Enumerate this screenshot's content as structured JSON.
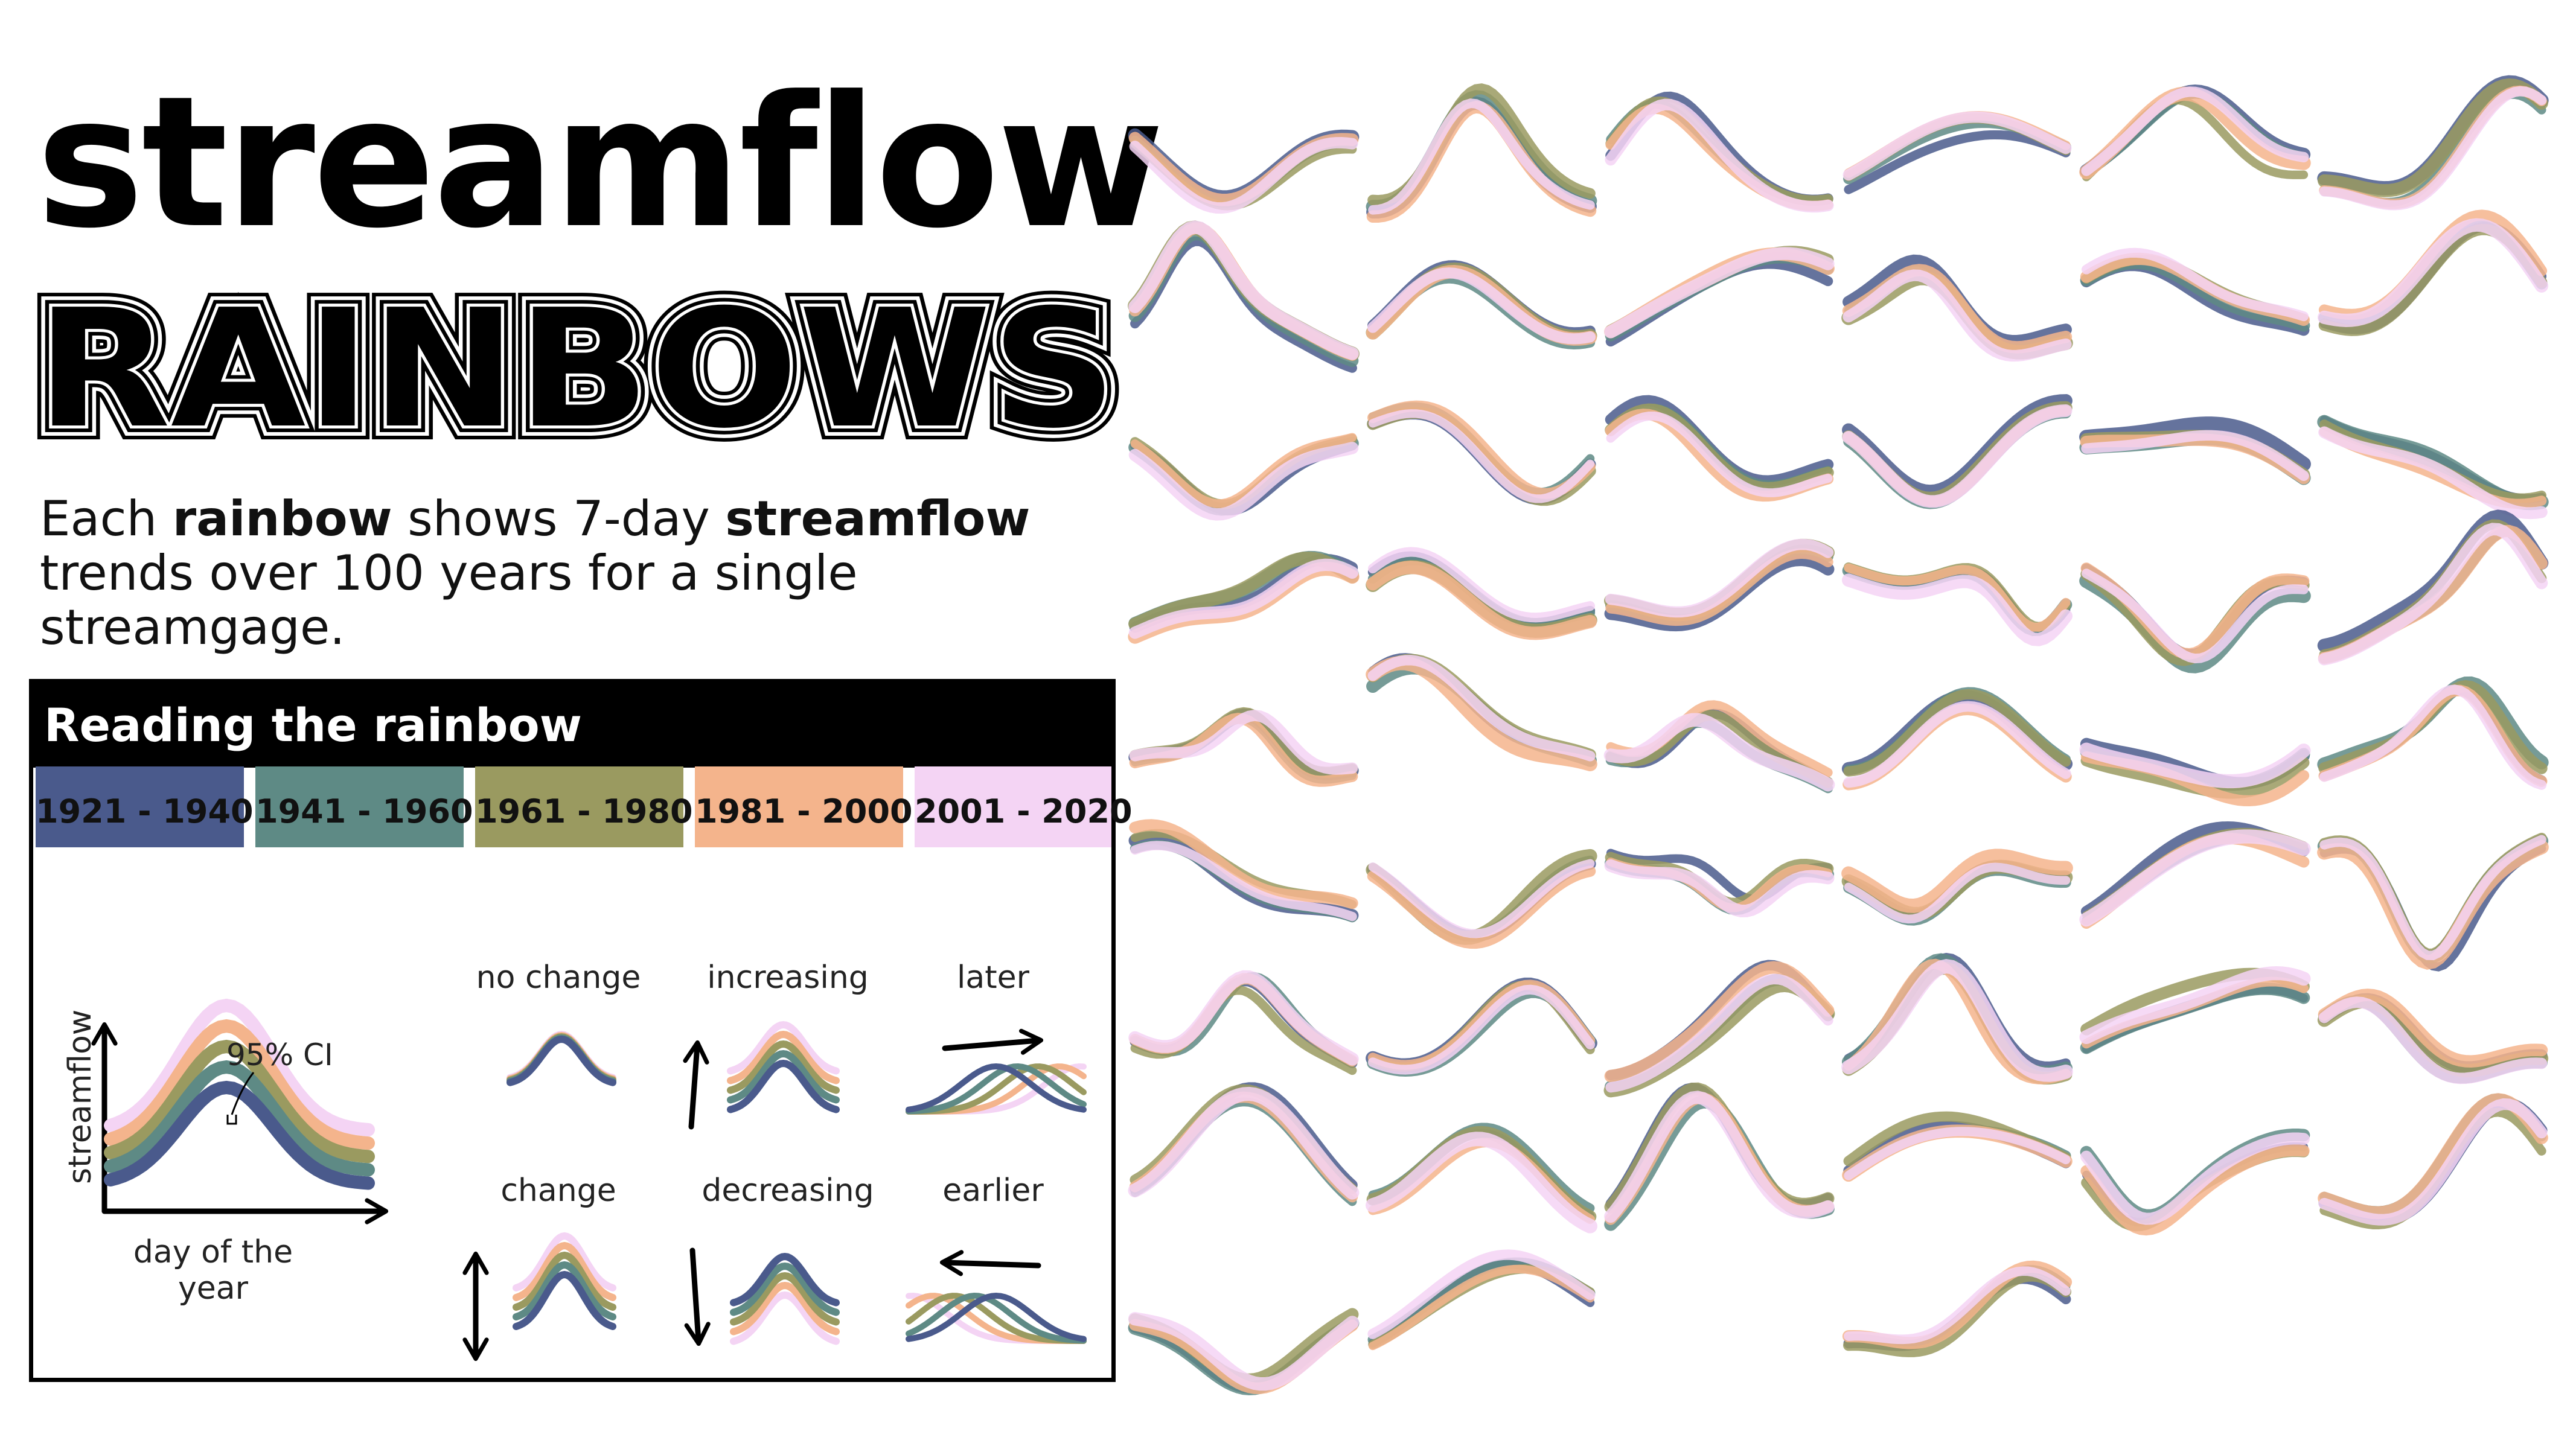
{
  "title": {
    "line1": "streamflow",
    "line2": "RAINBOWS"
  },
  "subtitle": {
    "part1": "Each ",
    "bold1": "rainbow",
    "part2": " shows 7-day ",
    "bold2": "streamflow",
    "part3": " trends over 100 years for a single streamgage."
  },
  "guide": {
    "header": "Reading the rainbow",
    "legend": [
      {
        "label": "1921 - 1940",
        "color": "#4a5a8c"
      },
      {
        "label": "1941 - 1960",
        "color": "#5e8a85"
      },
      {
        "label": "1961 - 1980",
        "color": "#9a9a60"
      },
      {
        "label": "1981 - 2000",
        "color": "#f4b48c"
      },
      {
        "label": "2001 - 2020",
        "color": "#f4d4f4"
      }
    ],
    "example": {
      "ci_label": "95% CI",
      "y_axis": "streamflow",
      "x_axis_line1": "day of the",
      "x_axis_line2": "year"
    },
    "patterns": {
      "no_change": "no change",
      "increasing": "increasing",
      "later": "later",
      "change": "change",
      "decreasing": "decreasing",
      "earlier": "earlier"
    }
  },
  "colors": {
    "band1": "#4a5a8c",
    "band2": "#5e8a85",
    "band3": "#9a9a60",
    "band4": "#f4b48c",
    "band5": "#f4d4f4",
    "ink": "#000000"
  }
}
